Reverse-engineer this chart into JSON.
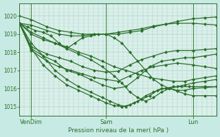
{
  "title": "Pression niveau de la mer( hPa )",
  "xlabel_ticks": [
    "VenDim",
    "Sam",
    "Lun"
  ],
  "xlabel_tick_positions": [
    0.06,
    0.44,
    0.88
  ],
  "ylim": [
    1014.5,
    1020.7
  ],
  "yticks": [
    1015,
    1016,
    1017,
    1018,
    1019,
    1020
  ],
  "bg_color": "#c8eae4",
  "plot_bg_color": "#daf0ea",
  "line_color": "#2a6e2a",
  "marker": "D",
  "markersize": 2.2,
  "linewidth": 0.9,
  "series": [
    {
      "x": [
        0.0,
        0.06,
        0.14,
        0.2,
        0.26,
        0.32,
        0.38,
        0.44,
        0.5,
        0.56,
        0.62,
        0.68,
        0.74,
        0.8,
        0.88,
        0.94,
        1.0
      ],
      "y": [
        1020.0,
        1019.8,
        1019.4,
        1019.2,
        1019.1,
        1019.0,
        1019.0,
        1019.0,
        1019.0,
        1019.1,
        1019.2,
        1019.4,
        1019.55,
        1019.7,
        1019.85,
        1019.9,
        1019.95
      ]
    },
    {
      "x": [
        0.0,
        0.06,
        0.14,
        0.2,
        0.26,
        0.32,
        0.38,
        0.44,
        0.5,
        0.56,
        0.62,
        0.68,
        0.74,
        0.8,
        0.88,
        0.94,
        1.0
      ],
      "y": [
        1019.6,
        1019.5,
        1019.2,
        1019.0,
        1018.9,
        1018.9,
        1019.0,
        1019.0,
        1019.1,
        1019.2,
        1019.3,
        1019.45,
        1019.55,
        1019.6,
        1019.6,
        1019.55,
        1019.5
      ]
    },
    {
      "x": [
        0.0,
        0.06,
        0.14,
        0.2,
        0.26,
        0.32,
        0.38,
        0.44,
        0.5,
        0.56,
        0.62,
        0.68,
        0.74,
        0.8,
        0.88,
        0.94,
        1.0
      ],
      "y": [
        1019.6,
        1018.3,
        1017.9,
        1017.7,
        1017.5,
        1017.2,
        1017.0,
        1016.9,
        1016.95,
        1017.3,
        1017.6,
        1017.8,
        1018.0,
        1018.1,
        1018.1,
        1018.15,
        1018.2
      ]
    },
    {
      "x": [
        0.0,
        0.06,
        0.14,
        0.2,
        0.26,
        0.32,
        0.38,
        0.44,
        0.5,
        0.56,
        0.62,
        0.68,
        0.74,
        0.8,
        0.88,
        0.94,
        1.0
      ],
      "y": [
        1019.6,
        1018.1,
        1017.5,
        1017.2,
        1017.0,
        1016.8,
        1016.6,
        1016.5,
        1016.4,
        1016.7,
        1017.0,
        1017.2,
        1017.3,
        1017.4,
        1017.3,
        1017.2,
        1017.1
      ]
    },
    {
      "x": [
        0.0,
        0.06,
        0.12,
        0.18,
        0.24,
        0.3,
        0.36,
        0.42,
        0.48,
        0.54,
        0.6,
        0.66,
        0.72,
        0.78,
        0.84,
        0.88,
        0.94,
        1.0
      ],
      "y": [
        1019.6,
        1018.2,
        1017.8,
        1017.5,
        1017.0,
        1016.8,
        1016.5,
        1016.2,
        1016.0,
        1016.1,
        1016.6,
        1017.2,
        1017.5,
        1017.6,
        1017.7,
        1017.7,
        1017.8,
        1017.9
      ]
    },
    {
      "x": [
        0.0,
        0.06,
        0.12,
        0.18,
        0.24,
        0.3,
        0.36,
        0.42,
        0.48,
        0.54,
        0.6,
        0.66,
        0.72,
        0.78,
        0.84,
        0.88,
        0.94,
        1.0
      ],
      "y": [
        1019.6,
        1019.0,
        1018.7,
        1018.5,
        1018.3,
        1018.0,
        1017.8,
        1017.5,
        1017.2,
        1017.0,
        1016.8,
        1016.6,
        1016.5,
        1016.4,
        1016.4,
        1016.5,
        1016.6,
        1016.7
      ]
    },
    {
      "x": [
        0.0,
        0.06,
        0.12,
        0.18,
        0.24,
        0.3,
        0.36,
        0.42,
        0.48,
        0.52,
        0.56,
        0.6,
        0.64,
        0.68,
        0.72,
        0.76,
        0.8,
        0.84,
        0.88,
        0.94,
        1.0
      ],
      "y": [
        1019.6,
        1019.1,
        1018.8,
        1018.5,
        1018.2,
        1017.9,
        1017.6,
        1017.2,
        1016.7,
        1016.3,
        1015.8,
        1015.5,
        1015.3,
        1015.5,
        1015.8,
        1016.0,
        1016.1,
        1016.2,
        1016.3,
        1016.4,
        1016.5
      ]
    },
    {
      "x": [
        0.0,
        0.06,
        0.12,
        0.18,
        0.24,
        0.3,
        0.36,
        0.42,
        0.46,
        0.5,
        0.54,
        0.58,
        0.62,
        0.66,
        0.7,
        0.74,
        0.78,
        0.82,
        0.86,
        0.88,
        0.94,
        1.0
      ],
      "y": [
        1019.6,
        1018.5,
        1017.8,
        1017.0,
        1016.5,
        1016.1,
        1015.8,
        1015.5,
        1015.3,
        1015.1,
        1015.0,
        1015.2,
        1015.4,
        1015.6,
        1015.9,
        1016.0,
        1016.1,
        1016.1,
        1016.1,
        1016.1,
        1016.1,
        1016.1
      ]
    },
    {
      "x": [
        0.0,
        0.06,
        0.12,
        0.18,
        0.24,
        0.3,
        0.36,
        0.4,
        0.44,
        0.48,
        0.52,
        0.56,
        0.6,
        0.64,
        0.68,
        0.72,
        0.76,
        0.8,
        0.84,
        0.88,
        0.94,
        1.0
      ],
      "y": [
        1019.6,
        1018.2,
        1017.3,
        1016.7,
        1016.2,
        1015.9,
        1015.6,
        1015.4,
        1015.2,
        1015.05,
        1015.0,
        1015.1,
        1015.3,
        1015.6,
        1015.8,
        1016.0,
        1016.0,
        1015.9,
        1015.9,
        1016.0,
        1016.05,
        1016.1
      ]
    },
    {
      "x": [
        0.0,
        0.04,
        0.08,
        0.12,
        0.16,
        0.2,
        0.24,
        0.28,
        0.32,
        0.36,
        0.4,
        0.44,
        0.48,
        0.52,
        0.56,
        0.6,
        0.64,
        0.68,
        0.72,
        0.76,
        0.8,
        0.84,
        0.88,
        0.94,
        1.0
      ],
      "y": [
        1019.6,
        1019.4,
        1019.2,
        1019.1,
        1018.9,
        1018.5,
        1018.2,
        1018.5,
        1018.8,
        1018.9,
        1019.0,
        1019.0,
        1018.8,
        1018.5,
        1018.0,
        1017.5,
        1017.0,
        1016.5,
        1016.2,
        1016.0,
        1015.85,
        1015.7,
        1015.6,
        1015.6,
        1015.6
      ]
    }
  ],
  "n_vgrid": 40,
  "n_hgrid_minor": 5
}
